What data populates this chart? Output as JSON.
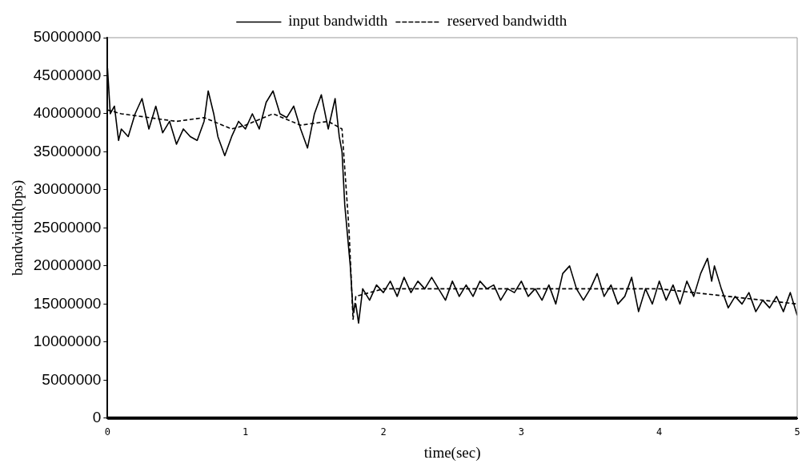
{
  "chart_data": {
    "type": "line",
    "xlabel": "time(sec)",
    "ylabel": "bandwidth(bps)",
    "xlim": [
      0,
      5
    ],
    "xticks": [
      0,
      1,
      2,
      3,
      4,
      5
    ],
    "ylim": [
      0,
      50000000
    ],
    "yticks": [
      0,
      5000000,
      10000000,
      15000000,
      20000000,
      25000000,
      30000000,
      35000000,
      40000000,
      45000000,
      50000000
    ],
    "grid": false,
    "legend": "top",
    "marker": "none",
    "series": [
      {
        "name": "input bandwidth",
        "color": "#000000",
        "line_style": "solid",
        "x": [
          0,
          0.02,
          0.05,
          0.08,
          0.1,
          0.15,
          0.2,
          0.25,
          0.3,
          0.35,
          0.4,
          0.45,
          0.5,
          0.55,
          0.6,
          0.65,
          0.7,
          0.73,
          0.77,
          0.8,
          0.85,
          0.9,
          0.95,
          1.0,
          1.05,
          1.1,
          1.15,
          1.2,
          1.25,
          1.3,
          1.35,
          1.4,
          1.45,
          1.5,
          1.55,
          1.6,
          1.65,
          1.68,
          1.7,
          1.72,
          1.74,
          1.76,
          1.78,
          1.8,
          1.82,
          1.85,
          1.9,
          1.95,
          2.0,
          2.05,
          2.1,
          2.15,
          2.2,
          2.25,
          2.3,
          2.35,
          2.4,
          2.45,
          2.5,
          2.55,
          2.6,
          2.65,
          2.7,
          2.75,
          2.8,
          2.85,
          2.9,
          2.95,
          3.0,
          3.05,
          3.1,
          3.15,
          3.2,
          3.25,
          3.3,
          3.35,
          3.4,
          3.45,
          3.5,
          3.55,
          3.6,
          3.65,
          3.7,
          3.75,
          3.8,
          3.85,
          3.9,
          3.95,
          4.0,
          4.05,
          4.1,
          4.15,
          4.2,
          4.25,
          4.3,
          4.35,
          4.38,
          4.4,
          4.45,
          4.5,
          4.55,
          4.6,
          4.65,
          4.7,
          4.75,
          4.8,
          4.85,
          4.9,
          4.95,
          5.0
        ],
        "values": [
          46000000,
          40000000,
          41000000,
          36500000,
          38000000,
          37000000,
          40000000,
          42000000,
          38000000,
          41000000,
          37500000,
          39000000,
          36000000,
          38000000,
          37000000,
          36500000,
          39000000,
          43000000,
          40000000,
          37000000,
          34500000,
          37000000,
          39000000,
          38000000,
          40000000,
          38000000,
          41500000,
          43000000,
          40000000,
          39500000,
          41000000,
          38000000,
          35500000,
          40000000,
          42500000,
          38000000,
          42000000,
          37000000,
          35000000,
          28000000,
          24000000,
          20000000,
          14000000,
          15000000,
          12500000,
          17000000,
          15500000,
          17500000,
          16500000,
          18000000,
          16000000,
          18500000,
          16500000,
          18000000,
          17000000,
          18500000,
          17000000,
          15500000,
          18000000,
          16000000,
          17500000,
          16000000,
          18000000,
          17000000,
          17500000,
          15500000,
          17000000,
          16500000,
          18000000,
          16000000,
          17000000,
          15500000,
          17500000,
          15000000,
          19000000,
          20000000,
          17000000,
          15500000,
          17000000,
          19000000,
          16000000,
          17500000,
          15000000,
          16000000,
          18500000,
          14000000,
          17000000,
          15000000,
          18000000,
          15500000,
          17500000,
          15000000,
          18000000,
          16000000,
          19000000,
          21000000,
          18000000,
          20000000,
          17000000,
          14500000,
          16000000,
          15000000,
          16500000,
          14000000,
          15500000,
          14500000,
          16000000,
          14000000,
          16500000,
          13500000
        ]
      },
      {
        "name": "reserved bandwidth",
        "color": "#000000",
        "line_style": "dashed",
        "x": [
          0,
          0.1,
          0.3,
          0.5,
          0.7,
          0.9,
          1.0,
          1.2,
          1.4,
          1.6,
          1.7,
          1.75,
          1.78,
          1.8,
          2.0,
          2.5,
          3.0,
          3.5,
          4.0,
          4.5,
          5.0
        ],
        "values": [
          40500000,
          40000000,
          39500000,
          39000000,
          39500000,
          38000000,
          38500000,
          40000000,
          38500000,
          39000000,
          38000000,
          25000000,
          13000000,
          16000000,
          17000000,
          17000000,
          17000000,
          17000000,
          17000000,
          16000000,
          15000000
        ]
      }
    ]
  }
}
